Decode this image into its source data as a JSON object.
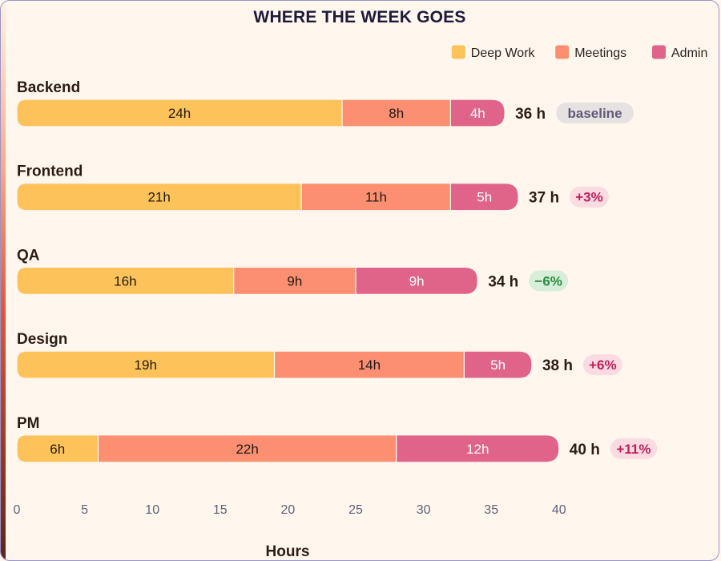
{
  "chart_data": {
    "type": "bar",
    "orientation": "horizontal",
    "stacked": true,
    "title": "WHERE THE WEEK GOES",
    "xlabel": "Hours",
    "xlim": [
      0,
      40
    ],
    "xticks": [
      0,
      5,
      10,
      15,
      20,
      25,
      30,
      35,
      40
    ],
    "grid": false,
    "legend_position": "top-right",
    "categories": [
      "Backend",
      "Frontend",
      "QA",
      "Design",
      "PM"
    ],
    "series": [
      {
        "name": "Deep Work",
        "color": "#fdc25a",
        "text_color": "#1f1a14",
        "values": [
          24,
          21,
          16,
          19,
          6
        ],
        "labels": [
          "24h",
          "21h",
          "16h",
          "19h",
          "6h"
        ]
      },
      {
        "name": "Meetings",
        "color": "#fc8f72",
        "text_color": "#1f1a14",
        "values": [
          8,
          11,
          9,
          14,
          22
        ],
        "labels": [
          "8h",
          "11h",
          "9h",
          "14h",
          "22h"
        ]
      },
      {
        "name": "Admin",
        "color": "#e0638a",
        "text_color": "#ffffff",
        "values": [
          4,
          5,
          9,
          5,
          12
        ],
        "labels": [
          "4h",
          "5h",
          "9h",
          "5h",
          "12h"
        ]
      }
    ],
    "totals": [
      "36 h",
      "37 h",
      "34 h",
      "38 h",
      "40 h"
    ],
    "badges": [
      {
        "text": "baseline",
        "kind": "neutral"
      },
      {
        "text": "+3%",
        "kind": "up"
      },
      {
        "text": "−6%",
        "kind": "down"
      },
      {
        "text": "+6%",
        "kind": "up"
      },
      {
        "text": "+11%",
        "kind": "up"
      }
    ]
  },
  "colors": {
    "badge_neutral_bg": "#e6e2e2",
    "badge_neutral_text": "#5d5a78",
    "badge_up_bg": "#fadbe2",
    "badge_up_text": "#c11f5a",
    "badge_down_bg": "#d7eed8",
    "badge_down_text": "#2a8a40"
  }
}
